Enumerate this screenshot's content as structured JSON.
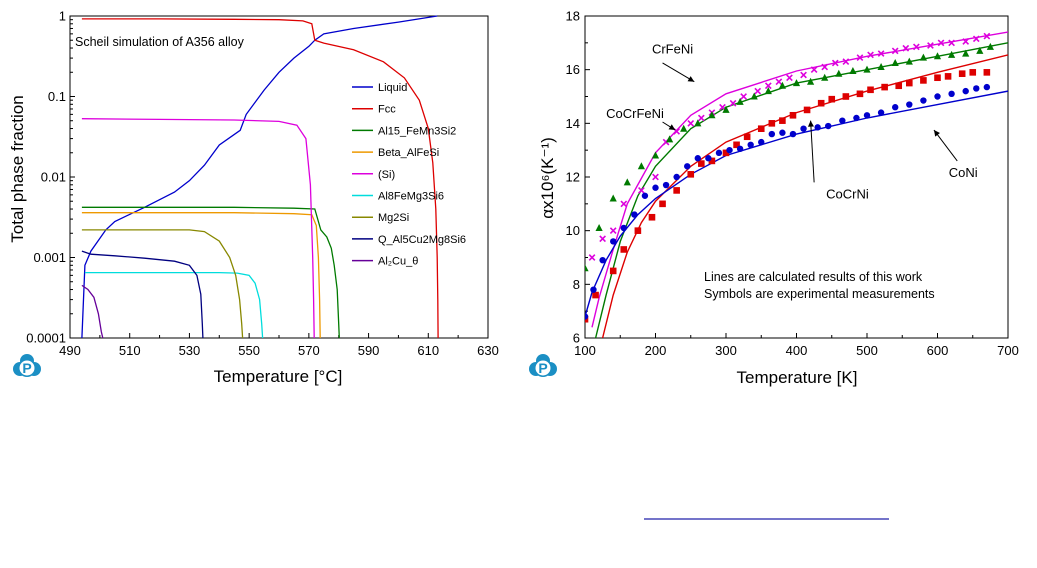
{
  "logo": {
    "letter": "P",
    "color": "#1b8fc4"
  },
  "footer": {
    "line_color": "#2222aa"
  },
  "chart_data": [
    {
      "type": "line",
      "annotation": "Scheil simulation of A356 alloy",
      "xlabel": "Temperature [°C]",
      "ylabel": "Total phase fraction",
      "xlim": [
        490,
        630
      ],
      "ylim": [
        0.0001,
        1
      ],
      "yscale": "log",
      "xticks": [
        490,
        510,
        530,
        550,
        570,
        590,
        610,
        630
      ],
      "yticks": [
        {
          "v": 0.0001,
          "t": "0.0001"
        },
        {
          "v": 0.001,
          "t": "0.001"
        },
        {
          "v": 0.01,
          "t": "0.01"
        },
        {
          "v": 0.1,
          "t": "0.1"
        },
        {
          "v": 1,
          "t": "1"
        }
      ],
      "grid": false,
      "legend_position": "right",
      "series": [
        {
          "name": "Liquid",
          "color": "#0000cc",
          "x": [
            613,
            600,
            585,
            575,
            572,
            570,
            565,
            560,
            555,
            549,
            547,
            540,
            535,
            530,
            525,
            515,
            505,
            502,
            497,
            495,
            494
          ],
          "y": [
            1,
            0.84,
            0.7,
            0.6,
            0.5,
            0.42,
            0.3,
            0.2,
            0.12,
            0.06,
            0.038,
            0.025,
            0.014,
            0.009,
            0.0065,
            0.0042,
            0.0028,
            0.0022,
            0.0012,
            0.0008,
            0.0001
          ]
        },
        {
          "name": "Fcc",
          "color": "#dd0000",
          "x": [
            494,
            520,
            545,
            560,
            568,
            571,
            572,
            575,
            585,
            595,
            602,
            607,
            610,
            611.5,
            612.5,
            613,
            613.2,
            613.3
          ],
          "y": [
            0.92,
            0.92,
            0.91,
            0.9,
            0.87,
            0.8,
            0.5,
            0.46,
            0.38,
            0.27,
            0.17,
            0.09,
            0.04,
            0.015,
            0.004,
            0.001,
            0.0003,
            0.0001
          ]
        },
        {
          "name": "Al15_FeMn3Si2",
          "color": "#007a00",
          "x": [
            494,
            520,
            545,
            565,
            572,
            574,
            576,
            577.5,
            578.5,
            579.5,
            580,
            580.2
          ],
          "y": [
            0.0042,
            0.0042,
            0.0042,
            0.0041,
            0.004,
            0.0022,
            0.0018,
            0.0013,
            0.0008,
            0.0004,
            0.00015,
            0.0001
          ]
        },
        {
          "name": "Beta_AlFeSi",
          "color": "#ee9900",
          "x": [
            494,
            520,
            545,
            565,
            571,
            572.5,
            573.2,
            573.6,
            573.8
          ],
          "y": [
            0.0036,
            0.0036,
            0.0036,
            0.0035,
            0.0034,
            0.0025,
            0.001,
            0.0003,
            0.0001
          ]
        },
        {
          "name": "(Si)",
          "color": "#dd00dd",
          "x": [
            494,
            520,
            545,
            560,
            566,
            569,
            570.5,
            571.3,
            571.6,
            571.8
          ],
          "y": [
            0.053,
            0.052,
            0.051,
            0.049,
            0.044,
            0.03,
            0.008,
            0.001,
            0.0003,
            0.0001
          ]
        },
        {
          "name": "Al8FeMg3Si6",
          "color": "#00dddd",
          "x": [
            495,
            520,
            540,
            546,
            550,
            552,
            553.5,
            554.2,
            554.5
          ],
          "y": [
            0.00065,
            0.00065,
            0.00065,
            0.00064,
            0.0006,
            0.00048,
            0.0003,
            0.00015,
            0.0001
          ]
        },
        {
          "name": "Mg2Si",
          "color": "#888800",
          "x": [
            494,
            510,
            530,
            535,
            540,
            543.5,
            545.5,
            546.8,
            547.5,
            547.8
          ],
          "y": [
            0.0022,
            0.0022,
            0.0022,
            0.0021,
            0.0016,
            0.001,
            0.0006,
            0.0003,
            0.00015,
            0.0001
          ]
        },
        {
          "name": "Q_Al5Cu2Mg8Si6",
          "color": "#000080",
          "x": [
            494,
            497,
            505,
            515,
            525,
            530,
            532.5,
            533.8,
            534.3,
            534.5
          ],
          "y": [
            0.0012,
            0.0011,
            0.00105,
            0.00098,
            0.0009,
            0.0008,
            0.0006,
            0.00035,
            0.00015,
            0.0001
          ]
        },
        {
          "name": "Al₂Cu_θ",
          "color": "#660099",
          "x": [
            494,
            496,
            498,
            499.5,
            500.5,
            501
          ],
          "y": [
            0.00045,
            0.0004,
            0.00032,
            0.0002,
            0.00012,
            0.0001
          ]
        }
      ]
    },
    {
      "type": "line",
      "xlabel": "Temperature [K]",
      "ylabel": "αx10⁶(K⁻¹)",
      "xlim": [
        100,
        700
      ],
      "ylim": [
        6,
        18
      ],
      "xticks": [
        100,
        200,
        300,
        400,
        500,
        600,
        700
      ],
      "yticks": [
        6,
        8,
        10,
        12,
        14,
        16,
        18
      ],
      "grid": false,
      "notes": [
        "Lines are calculated results of this work",
        "Symbols are experimental measurements"
      ],
      "series_labels": [
        {
          "text": "CrFeNi",
          "at": [
            195,
            16.6
          ],
          "pointer": [
            [
              210,
              16.25
            ],
            [
              255,
              15.55
            ]
          ]
        },
        {
          "text": "CoCrFeNi",
          "at": [
            130,
            14.2
          ],
          "pointer": [
            [
              210,
              14.05
            ],
            [
              228,
              13.75
            ]
          ]
        },
        {
          "text": "CoCrNi",
          "at": [
            442,
            11.2
          ],
          "pointer": [
            [
              425,
              11.8
            ],
            [
              420,
              14.1
            ]
          ]
        },
        {
          "text": "CoNi",
          "at": [
            616,
            12.0
          ],
          "pointer": [
            [
              628,
              12.6
            ],
            [
              595,
              13.75
            ]
          ]
        }
      ],
      "series": [
        {
          "name": "CrFeNi",
          "color": "#dd00dd",
          "marker": "x",
          "line": {
            "x": [
              110,
              120,
              140,
              160,
              200,
              250,
              300,
              400,
              500,
              600,
              700
            ],
            "y": [
              6.4,
              7.5,
              9.3,
              11.0,
              12.9,
              14.3,
              15.1,
              15.95,
              16.5,
              16.95,
              17.4
            ]
          },
          "points": {
            "x": [
              110,
              125,
              140,
              155,
              180,
              200,
              215,
              230,
              250,
              265,
              280,
              295,
              310,
              325,
              345,
              360,
              375,
              390,
              410,
              425,
              440,
              455,
              470,
              490,
              505,
              520,
              540,
              555,
              570,
              590,
              605,
              620,
              640,
              655,
              670
            ],
            "y": [
              9.0,
              9.7,
              10.0,
              11.0,
              11.5,
              12.0,
              13.3,
              13.7,
              14.0,
              14.2,
              14.4,
              14.6,
              14.75,
              15.0,
              15.2,
              15.4,
              15.55,
              15.7,
              15.8,
              16.0,
              16.1,
              16.25,
              16.3,
              16.45,
              16.55,
              16.6,
              16.7,
              16.8,
              16.85,
              16.9,
              17.0,
              17.0,
              17.05,
              17.15,
              17.25
            ]
          }
        },
        {
          "name": "CoCrFeNi",
          "color": "#007a00",
          "marker": "triangle",
          "line": {
            "x": [
              115,
              130,
              150,
              175,
              200,
              250,
              300,
              400,
              500,
              600,
              700
            ],
            "y": [
              6.0,
              7.6,
              9.6,
              11.3,
              12.4,
              13.8,
              14.6,
              15.5,
              16.0,
              16.5,
              17.0
            ]
          },
          "points": {
            "x": [
              100,
              120,
              140,
              160,
              180,
              200,
              220,
              240,
              260,
              280,
              300,
              320,
              340,
              360,
              380,
              400,
              420,
              440,
              460,
              480,
              500,
              520,
              540,
              560,
              580,
              600,
              620,
              640,
              660,
              675
            ],
            "y": [
              8.6,
              10.1,
              11.2,
              11.8,
              12.4,
              12.8,
              13.4,
              13.8,
              14.0,
              14.3,
              14.5,
              14.8,
              15.0,
              15.2,
              15.4,
              15.5,
              15.55,
              15.7,
              15.85,
              15.95,
              16.0,
              16.1,
              16.25,
              16.3,
              16.45,
              16.5,
              16.55,
              16.6,
              16.7,
              16.85
            ]
          }
        },
        {
          "name": "CoCrNi",
          "color": "#dd0000",
          "marker": "square",
          "line": {
            "x": [
              125,
              140,
              160,
              180,
              200,
              250,
              300,
              400,
              500,
              600,
              700
            ],
            "y": [
              6.0,
              7.6,
              9.2,
              10.3,
              11.1,
              12.4,
              13.3,
              14.4,
              15.2,
              15.9,
              16.55
            ]
          },
          "points": {
            "x": [
              100,
              115,
              140,
              155,
              175,
              195,
              210,
              230,
              250,
              265,
              280,
              300,
              315,
              330,
              350,
              365,
              380,
              395,
              415,
              435,
              450,
              470,
              490,
              505,
              525,
              545,
              560,
              580,
              600,
              615,
              635,
              650,
              670
            ],
            "y": [
              6.7,
              7.6,
              8.5,
              9.3,
              10.0,
              10.5,
              11.0,
              11.5,
              12.1,
              12.5,
              12.6,
              12.9,
              13.2,
              13.5,
              13.8,
              14.0,
              14.1,
              14.3,
              14.5,
              14.75,
              14.9,
              15.0,
              15.1,
              15.25,
              15.35,
              15.4,
              15.5,
              15.6,
              15.7,
              15.75,
              15.85,
              15.9,
              15.9
            ]
          }
        },
        {
          "name": "CoNi",
          "color": "#0000cc",
          "marker": "circle",
          "line": {
            "x": [
              100,
              110,
              130,
              150,
              175,
              200,
              250,
              300,
              400,
              500,
              600,
              700
            ],
            "y": [
              6.8,
              7.7,
              8.9,
              9.8,
              10.6,
              11.2,
              12.1,
              12.8,
              13.6,
              14.2,
              14.7,
              15.2
            ]
          },
          "points": {
            "x": [
              100,
              112,
              125,
              140,
              155,
              170,
              185,
              200,
              215,
              230,
              245,
              260,
              275,
              290,
              305,
              320,
              335,
              350,
              365,
              380,
              395,
              410,
              430,
              445,
              465,
              485,
              500,
              520,
              540,
              560,
              580,
              600,
              620,
              640,
              655,
              670
            ],
            "y": [
              6.8,
              7.8,
              8.9,
              9.6,
              10.1,
              10.6,
              11.3,
              11.6,
              11.7,
              12.0,
              12.4,
              12.7,
              12.7,
              12.9,
              13.0,
              13.05,
              13.2,
              13.3,
              13.6,
              13.65,
              13.6,
              13.8,
              13.85,
              13.9,
              14.1,
              14.2,
              14.3,
              14.4,
              14.6,
              14.7,
              14.85,
              15.0,
              15.1,
              15.2,
              15.3,
              15.35
            ]
          }
        }
      ]
    }
  ]
}
